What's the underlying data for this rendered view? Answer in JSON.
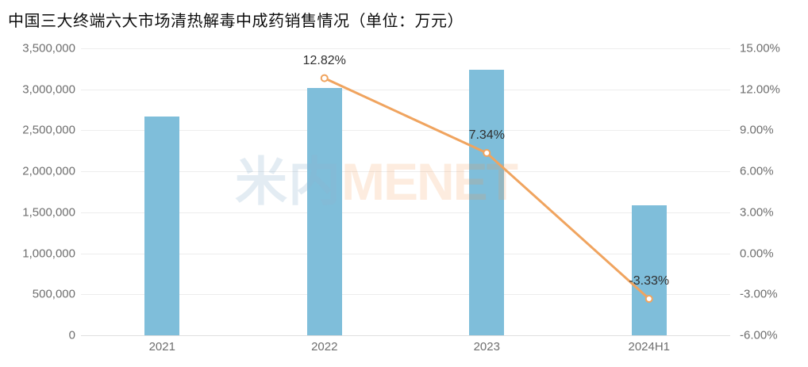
{
  "title": "中国三大终端六大市场清热解毒中成药销售情况（单位：万元）",
  "watermark": {
    "cjk": "米内",
    "latin": "MENET"
  },
  "colors": {
    "bar": "#7fbeda",
    "line": "#f0a45f",
    "marker_fill": "#ffffff",
    "grid": "#ededed",
    "axis_text": "#6e6e6e",
    "title_text": "#0d0d0d",
    "point_label_text": "#2f2f2f"
  },
  "chart_data": {
    "type": "bar",
    "title": "中国三大终端六大市场清热解毒中成药销售情况（单位：万元）",
    "categories": [
      "2021",
      "2022",
      "2023",
      "2024H1"
    ],
    "bar_values": [
      2670000,
      3015000,
      3235000,
      1590000
    ],
    "line_values_pct": [
      null,
      12.82,
      7.34,
      -3.33
    ],
    "line_point_labels": [
      "",
      "12.82%",
      "7.34%",
      "-3.33%"
    ],
    "left_axis": {
      "min": 0,
      "max": 3500000,
      "step": 500000,
      "ticks_top_to_bottom": [
        "3,500,000",
        "3,000,000",
        "2,500,000",
        "2,000,000",
        "1,500,000",
        "1,000,000",
        "500,000",
        "0"
      ]
    },
    "right_axis": {
      "min": -6,
      "max": 15,
      "step": 3,
      "ticks_top_to_bottom": [
        "15.00%",
        "12.00%",
        "9.00%",
        "6.00%",
        "3.00%",
        "0.00%",
        "-3.00%",
        "-6.00%"
      ]
    },
    "grid": true,
    "legend": "none"
  }
}
